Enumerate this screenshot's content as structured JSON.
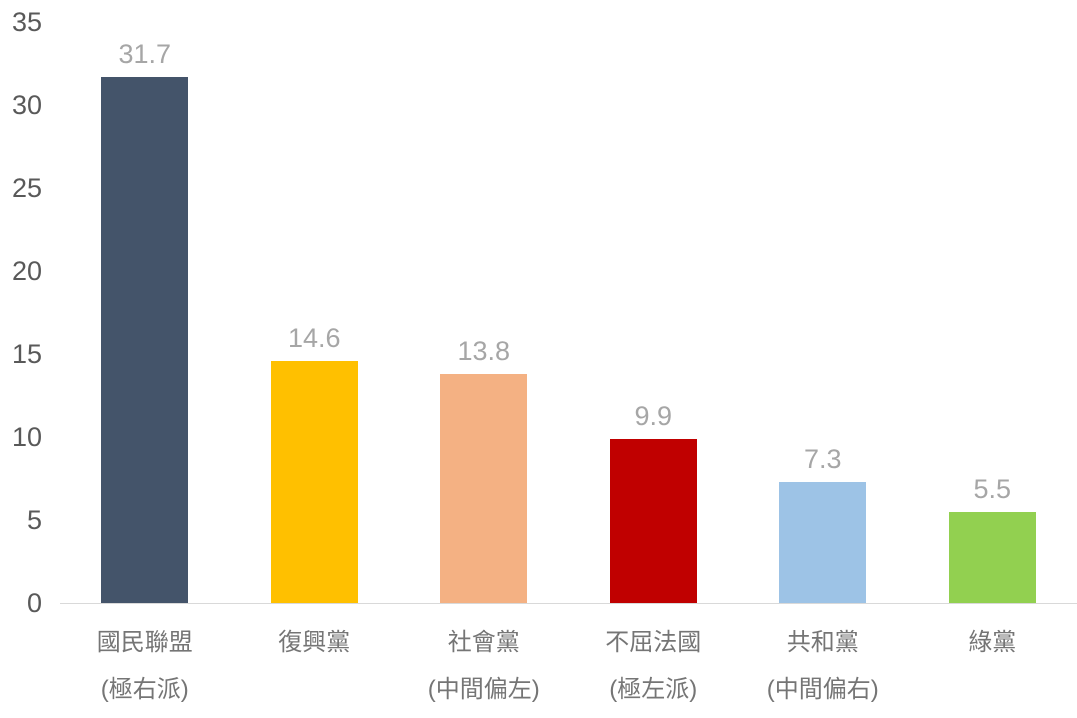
{
  "chart_data": {
    "type": "bar",
    "title": "",
    "xlabel": "",
    "ylabel": "",
    "ylim": [
      0,
      35
    ],
    "yticks": [
      0,
      5,
      10,
      15,
      20,
      25,
      30,
      35
    ],
    "grid": false,
    "legend": false,
    "categories": [
      {
        "name": "國民聯盟",
        "note": "(極右派)"
      },
      {
        "name": "復興黨",
        "note": ""
      },
      {
        "name": "社會黨",
        "note": "(中間偏左)"
      },
      {
        "name": "不屈法國",
        "note": "(極左派)"
      },
      {
        "name": "共和黨",
        "note": "(中間偏右)"
      },
      {
        "name": "綠黨",
        "note": ""
      }
    ],
    "values": [
      31.7,
      14.6,
      13.8,
      9.9,
      7.3,
      5.5
    ],
    "bar_colors": [
      "#44546A",
      "#FFC000",
      "#F4B183",
      "#C00000",
      "#9DC3E6",
      "#92D050"
    ],
    "value_label_color": "#A6A6A6",
    "tick_label_color": "#595959",
    "category_label_color": "#757575",
    "axis_line_color": "#D9D9D9",
    "background_color": "#FFFFFF"
  }
}
